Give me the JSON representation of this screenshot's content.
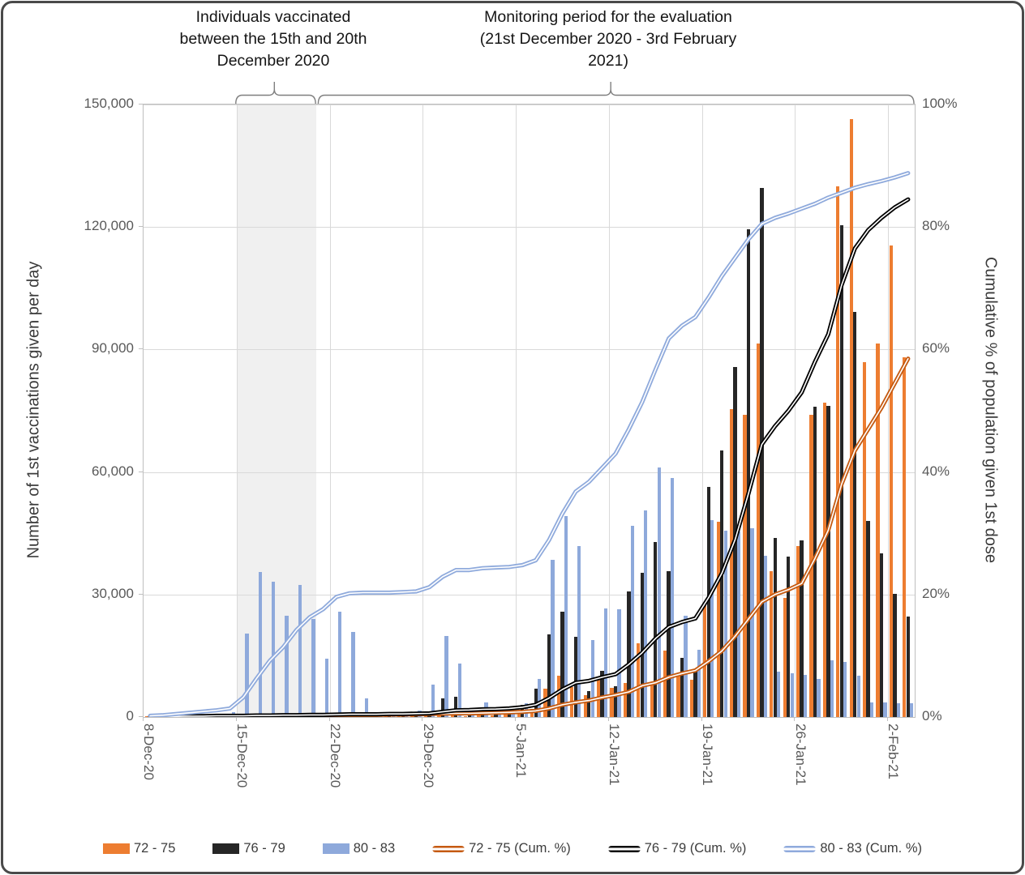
{
  "annotations": {
    "vaccination_window": {
      "text": "Individuals vaccinated between the 15th and 20th December 2020"
    },
    "monitoring_period": {
      "text": "Monitoring period for the evaluation (21st December 2020 - 3rd February 2021)"
    }
  },
  "axes": {
    "left_title": "Number of 1st vaccinations given per day",
    "right_title": "Cumulative % of population given 1st dose",
    "left_tick_labels": [
      "0",
      "30,000",
      "60,000",
      "90,000",
      "120,000",
      "150,000"
    ],
    "right_tick_labels": [
      "0%",
      "20%",
      "40%",
      "60%",
      "80%",
      "100%"
    ]
  },
  "legend": {
    "items": [
      {
        "type": "bar",
        "color": "#ED7D31",
        "label": "72 - 75"
      },
      {
        "type": "bar",
        "color": "#262626",
        "label": "76 - 79"
      },
      {
        "type": "bar",
        "color": "#8EA9DB",
        "label": "80 - 83"
      },
      {
        "type": "line",
        "color": "#C55A11",
        "label": "72 - 75 (Cum. %)"
      },
      {
        "type": "line",
        "color": "#0D0D0D",
        "label": "76 - 79 (Cum. %)"
      },
      {
        "type": "line",
        "color": "#8FAADC",
        "label": "80 - 83 (Cum. %)"
      }
    ]
  },
  "colors": {
    "bar_orange": "#ED7D31",
    "bar_black": "#262626",
    "bar_blue": "#8EA9DB",
    "line_orange": "#C55A11",
    "line_black": "#000000",
    "line_blue": "#8FAADC",
    "line_core": "#FFFFFF",
    "shaded_region": "#F0F0F0",
    "gridline": "#D9D9D9",
    "plot_border": "#BFBFBF",
    "bracket": "#7F7F7F",
    "tick_text": "#595959"
  },
  "chart_data": {
    "type": "bar",
    "subtype": "clustered-bars-with-cumulative-lines",
    "x": [
      "8-Dec-20",
      "9-Dec-20",
      "10-Dec-20",
      "11-Dec-20",
      "12-Dec-20",
      "13-Dec-20",
      "14-Dec-20",
      "15-Dec-20",
      "16-Dec-20",
      "17-Dec-20",
      "18-Dec-20",
      "19-Dec-20",
      "20-Dec-20",
      "21-Dec-20",
      "22-Dec-20",
      "23-Dec-20",
      "24-Dec-20",
      "25-Dec-20",
      "26-Dec-20",
      "27-Dec-20",
      "28-Dec-20",
      "29-Dec-20",
      "30-Dec-20",
      "31-Dec-20",
      "1-Jan-21",
      "2-Jan-21",
      "3-Jan-21",
      "4-Jan-21",
      "5-Jan-21",
      "6-Jan-21",
      "7-Jan-21",
      "8-Jan-21",
      "9-Jan-21",
      "10-Jan-21",
      "11-Jan-21",
      "12-Jan-21",
      "13-Jan-21",
      "14-Jan-21",
      "15-Jan-21",
      "16-Jan-21",
      "17-Jan-21",
      "18-Jan-21",
      "19-Jan-21",
      "20-Jan-21",
      "21-Jan-21",
      "22-Jan-21",
      "23-Jan-21",
      "24-Jan-21",
      "25-Jan-21",
      "26-Jan-21",
      "27-Jan-21",
      "28-Jan-21",
      "29-Jan-21",
      "30-Jan-21",
      "31-Jan-21",
      "1-Feb-21",
      "2-Feb-21",
      "3-Feb-21"
    ],
    "x_tick_labels": [
      "8-Dec-20",
      "15-Dec-20",
      "22-Dec-20",
      "29-Dec-20",
      "5-Jan-21",
      "12-Jan-21",
      "19-Jan-21",
      "26-Jan-21",
      "2-Feb-21"
    ],
    "x_tick_day_indices": [
      0,
      7,
      14,
      21,
      28,
      35,
      42,
      49,
      56
    ],
    "ylabel_left": "Number of 1st vaccinations given per day",
    "ylabel_right": "Cumulative % of population given 1st dose",
    "ylim_left": [
      0,
      150000
    ],
    "ylim_right_pct": [
      0,
      100
    ],
    "grid": true,
    "legend_position": "bottom",
    "shaded_region_days": {
      "from": 7,
      "to": 13
    },
    "brackets": [
      {
        "from_day": 7,
        "to_day": 13,
        "pointer_day": 9.9
      },
      {
        "from_day": 13.2,
        "to_day": 58,
        "pointer_day": 35.2
      }
    ],
    "series": [
      {
        "name": "72 - 75",
        "kind": "bar",
        "color": "#ED7D31",
        "values": [
          60,
          60,
          80,
          90,
          100,
          120,
          150,
          200,
          250,
          250,
          300,
          300,
          250,
          300,
          400,
          400,
          300,
          100,
          200,
          300,
          400,
          600,
          800,
          900,
          300,
          700,
          400,
          900,
          1500,
          2000,
          7000,
          10200,
          7400,
          5400,
          9400,
          7200,
          8400,
          18000,
          8200,
          16200,
          10800,
          9200,
          27800,
          47800,
          75400,
          74000,
          91400,
          35800,
          29200,
          41800,
          74000,
          77000,
          130000,
          146500,
          87000,
          91400,
          115400,
          88000
        ]
      },
      {
        "name": "76 - 79",
        "kind": "bar",
        "color": "#262626",
        "values": [
          100,
          120,
          150,
          150,
          200,
          200,
          250,
          300,
          350,
          350,
          400,
          400,
          350,
          400,
          500,
          500,
          400,
          150,
          300,
          400,
          600,
          1000,
          4600,
          5000,
          500,
          1500,
          700,
          1500,
          3000,
          7000,
          20200,
          25800,
          19600,
          6400,
          11400,
          7600,
          30800,
          35400,
          42800,
          35800,
          14400,
          11800,
          56400,
          65200,
          85800,
          119400,
          129600,
          43800,
          39200,
          43200,
          76000,
          76200,
          120400,
          99200,
          48000,
          40000,
          30200,
          24600
        ]
      },
      {
        "name": "80 - 83",
        "kind": "bar",
        "color": "#8EA9DB",
        "values": [
          300,
          400,
          500,
          500,
          600,
          700,
          1200,
          20400,
          35600,
          33200,
          24800,
          32300,
          24000,
          14200,
          25800,
          20800,
          4600,
          300,
          600,
          800,
          1500,
          8000,
          19900,
          13100,
          400,
          3600,
          600,
          900,
          3400,
          9400,
          38400,
          49200,
          41800,
          18800,
          26500,
          26400,
          46800,
          50600,
          61200,
          58600,
          24800,
          16400,
          48200,
          45600,
          45500,
          46200,
          39400,
          11200,
          10800,
          10400,
          9400,
          13800,
          13400,
          10200,
          3500,
          3600,
          3400,
          3400
        ]
      },
      {
        "name": "72 - 75 (Cum. %)",
        "kind": "line",
        "color": "#C55A11",
        "values_pct": [
          0.05,
          0.05,
          0.1,
          0.1,
          0.1,
          0.15,
          0.15,
          0.15,
          0.2,
          0.2,
          0.25,
          0.25,
          0.3,
          0.3,
          0.3,
          0.35,
          0.35,
          0.35,
          0.4,
          0.4,
          0.45,
          0.5,
          0.55,
          0.6,
          0.6,
          0.65,
          0.7,
          0.75,
          0.85,
          1.0,
          1.4,
          2.0,
          2.4,
          2.7,
          3.2,
          3.6,
          4.1,
          5.1,
          5.6,
          6.5,
          7.1,
          7.6,
          9.1,
          10.8,
          13.2,
          16.0,
          18.8,
          20.0,
          20.8,
          21.8,
          25.9,
          30.5,
          38.0,
          43.5,
          47.0,
          50.5,
          54.5,
          58.5
        ]
      },
      {
        "name": "76 - 79 (Cum. %)",
        "kind": "line",
        "color": "#000000",
        "values_pct": [
          0.1,
          0.1,
          0.1,
          0.15,
          0.15,
          0.2,
          0.2,
          0.2,
          0.25,
          0.25,
          0.3,
          0.3,
          0.35,
          0.35,
          0.4,
          0.45,
          0.45,
          0.45,
          0.5,
          0.5,
          0.55,
          0.6,
          0.85,
          1.1,
          1.15,
          1.25,
          1.3,
          1.4,
          1.6,
          2.0,
          3.1,
          4.5,
          5.6,
          5.9,
          6.5,
          7.0,
          8.6,
          10.5,
          12.8,
          14.7,
          15.5,
          16.1,
          19.5,
          23.5,
          29.0,
          36.5,
          44.5,
          47.5,
          50.0,
          53.0,
          58.0,
          62.5,
          70.5,
          76.5,
          79.5,
          81.5,
          83.2,
          84.5
        ]
      },
      {
        "name": "80 - 83 (Cum. %)",
        "kind": "line",
        "color": "#8FAADC",
        "values_pct": [
          0.2,
          0.3,
          0.5,
          0.7,
          0.9,
          1.1,
          1.4,
          3.2,
          6.3,
          9.2,
          11.4,
          14.2,
          16.3,
          17.6,
          19.6,
          20.2,
          20.3,
          20.3,
          20.3,
          20.4,
          20.5,
          21.2,
          22.9,
          24.0,
          24.0,
          24.3,
          24.4,
          24.5,
          24.8,
          25.6,
          28.9,
          33.2,
          36.8,
          38.4,
          40.7,
          43.0,
          47.0,
          51.4,
          56.7,
          61.8,
          63.9,
          65.3,
          68.5,
          72.0,
          75.0,
          78.0,
          80.5,
          81.5,
          82.2,
          83.0,
          83.8,
          84.8,
          85.6,
          86.4,
          87.0,
          87.5,
          88.1,
          88.8
        ]
      }
    ]
  }
}
